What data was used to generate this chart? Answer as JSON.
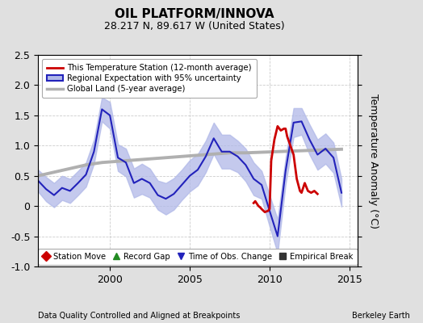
{
  "title": "OIL PLATFORM/INNOVA",
  "subtitle": "28.217 N, 89.617 W (United States)",
  "ylabel": "Temperature Anomaly (°C)",
  "footer_left": "Data Quality Controlled and Aligned at Breakpoints",
  "footer_right": "Berkeley Earth",
  "ylim": [
    -1.0,
    2.5
  ],
  "xlim": [
    1995.5,
    2015.5
  ],
  "yticks": [
    -1.0,
    -0.5,
    0.0,
    0.5,
    1.0,
    1.5,
    2.0,
    2.5
  ],
  "xticks": [
    2000,
    2005,
    2010,
    2015
  ],
  "background_color": "#e0e0e0",
  "plot_bg_color": "#ffffff",
  "regional_color": "#2222bb",
  "regional_fill_color": "#b0b8e8",
  "station_color": "#cc0000",
  "global_color": "#b0b0b0",
  "legend_entries": [
    "This Temperature Station (12-month average)",
    "Regional Expectation with 95% uncertainty",
    "Global Land (5-year average)"
  ],
  "bottom_legend": [
    {
      "label": "Station Move",
      "color": "#cc0000",
      "marker": "D"
    },
    {
      "label": "Record Gap",
      "color": "#228B22",
      "marker": "^"
    },
    {
      "label": "Time of Obs. Change",
      "color": "#2222bb",
      "marker": "v"
    },
    {
      "label": "Empirical Break",
      "color": "#333333",
      "marker": "s"
    }
  ],
  "regional_x": [
    1995.5,
    1996.0,
    1996.5,
    1997.0,
    1997.5,
    1998.0,
    1998.5,
    1999.0,
    1999.5,
    2000.0,
    2000.5,
    2001.0,
    2001.5,
    2002.0,
    2002.5,
    2003.0,
    2003.5,
    2004.0,
    2004.5,
    2005.0,
    2005.5,
    2006.0,
    2006.5,
    2007.0,
    2007.5,
    2008.0,
    2008.5,
    2009.0,
    2009.5,
    2010.0,
    2010.5,
    2011.0,
    2011.5,
    2012.0,
    2012.5,
    2013.0,
    2013.5,
    2014.0,
    2014.5
  ],
  "regional_y": [
    0.42,
    0.28,
    0.18,
    0.3,
    0.25,
    0.38,
    0.52,
    0.9,
    1.6,
    1.5,
    0.8,
    0.72,
    0.38,
    0.45,
    0.38,
    0.18,
    0.12,
    0.2,
    0.35,
    0.5,
    0.6,
    0.82,
    1.12,
    0.9,
    0.9,
    0.82,
    0.68,
    0.45,
    0.35,
    -0.08,
    -0.5,
    0.58,
    1.38,
    1.4,
    1.1,
    0.85,
    0.95,
    0.8,
    0.22
  ],
  "regional_upper": [
    0.6,
    0.48,
    0.38,
    0.5,
    0.45,
    0.58,
    0.72,
    1.1,
    1.8,
    1.72,
    1.02,
    0.95,
    0.62,
    0.7,
    0.62,
    0.42,
    0.38,
    0.46,
    0.6,
    0.76,
    0.86,
    1.08,
    1.38,
    1.18,
    1.18,
    1.08,
    0.95,
    0.72,
    0.58,
    0.18,
    -0.22,
    0.8,
    1.62,
    1.62,
    1.35,
    1.1,
    1.2,
    1.05,
    0.45
  ],
  "regional_lower": [
    0.24,
    0.08,
    -0.02,
    0.1,
    0.05,
    0.18,
    0.32,
    0.7,
    1.4,
    1.28,
    0.58,
    0.49,
    0.14,
    0.2,
    0.14,
    -0.06,
    -0.14,
    -0.06,
    0.1,
    0.24,
    0.34,
    0.56,
    0.86,
    0.62,
    0.62,
    0.56,
    0.41,
    0.18,
    0.12,
    -0.34,
    -0.78,
    0.36,
    1.14,
    1.18,
    0.85,
    0.6,
    0.7,
    0.55,
    -0.01
  ],
  "station_x": [
    2009.0,
    2009.1,
    2009.2,
    2009.3,
    2009.4,
    2009.5,
    2009.7,
    2009.9,
    2010.0,
    2010.1,
    2010.3,
    2010.5,
    2010.7,
    2010.9,
    2011.0,
    2011.1,
    2011.3,
    2011.5,
    2011.7,
    2011.9,
    2012.0,
    2012.2,
    2012.4,
    2012.6,
    2012.8,
    2013.0
  ],
  "station_y": [
    0.05,
    0.08,
    0.04,
    0.0,
    -0.02,
    -0.05,
    -0.1,
    -0.08,
    -0.05,
    0.75,
    1.1,
    1.32,
    1.25,
    1.28,
    1.28,
    1.15,
    1.0,
    0.85,
    0.45,
    0.25,
    0.22,
    0.38,
    0.25,
    0.22,
    0.25,
    0.2
  ],
  "global_x": [
    1995.5,
    1996.5,
    1997.5,
    1998.5,
    1999.5,
    2000.5,
    2001.5,
    2002.5,
    2003.5,
    2004.5,
    2005.5,
    2006.5,
    2007.5,
    2008.5,
    2009.5,
    2010.5,
    2011.5,
    2012.5,
    2013.5,
    2014.5
  ],
  "global_y": [
    0.5,
    0.56,
    0.62,
    0.68,
    0.72,
    0.74,
    0.76,
    0.78,
    0.8,
    0.82,
    0.84,
    0.86,
    0.88,
    0.88,
    0.89,
    0.9,
    0.91,
    0.92,
    0.93,
    0.94
  ]
}
